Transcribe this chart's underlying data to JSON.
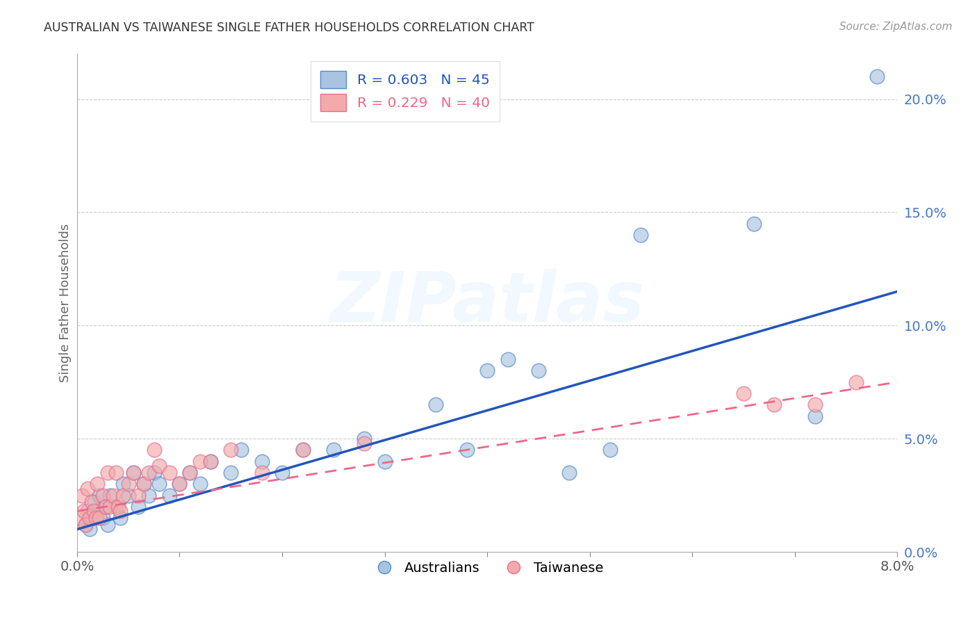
{
  "title": "AUSTRALIAN VS TAIWANESE SINGLE FATHER HOUSEHOLDS CORRELATION CHART",
  "source": "Source: ZipAtlas.com",
  "ylabel": "Single Father Households",
  "xlim": [
    0.0,
    8.0
  ],
  "ylim": [
    0.0,
    22.0
  ],
  "yticks_right": [
    0.0,
    5.0,
    10.0,
    15.0,
    20.0
  ],
  "xticks_minor": [
    0.0,
    1.0,
    2.0,
    3.0,
    4.0,
    5.0,
    6.0,
    7.0,
    8.0
  ],
  "xtick_labels_show": [
    0.0,
    8.0
  ],
  "legend_blue_r": "R = 0.603",
  "legend_blue_n": "N = 45",
  "legend_pink_r": "R = 0.229",
  "legend_pink_n": "N = 40",
  "legend_label_blue": "Australians",
  "legend_label_pink": "Taiwanese",
  "watermark": "ZIPatlas",
  "blue_scatter_color": "#A8C4E0",
  "pink_scatter_color": "#F4AAAA",
  "blue_scatter_edge": "#5588CC",
  "pink_scatter_edge": "#E07090",
  "blue_line_color": "#2255BB",
  "pink_line_color": "#EE6688",
  "background_color": "#FFFFFF",
  "grid_color": "#CCCCCC",
  "title_color": "#333333",
  "source_color": "#999999",
  "right_axis_color": "#4477CC",
  "aus_x": [
    0.08,
    0.1,
    0.12,
    0.15,
    0.17,
    0.2,
    0.22,
    0.25,
    0.28,
    0.3,
    0.32,
    0.38,
    0.42,
    0.45,
    0.5,
    0.55,
    0.6,
    0.65,
    0.7,
    0.75,
    0.8,
    0.9,
    1.0,
    1.1,
    1.2,
    1.3,
    1.5,
    1.6,
    1.8,
    2.0,
    2.2,
    2.5,
    2.8,
    3.0,
    3.5,
    3.8,
    4.0,
    4.2,
    4.5,
    4.8,
    5.2,
    5.5,
    6.6,
    7.2,
    7.8
  ],
  "aus_y": [
    1.2,
    1.8,
    1.0,
    1.5,
    2.2,
    1.8,
    2.5,
    1.5,
    2.0,
    1.2,
    2.5,
    2.0,
    1.5,
    3.0,
    2.5,
    3.5,
    2.0,
    3.0,
    2.5,
    3.5,
    3.0,
    2.5,
    3.0,
    3.5,
    3.0,
    4.0,
    3.5,
    4.5,
    4.0,
    3.5,
    4.5,
    4.5,
    5.0,
    4.0,
    6.5,
    4.5,
    8.0,
    8.5,
    8.0,
    3.5,
    4.5,
    14.0,
    14.5,
    6.0,
    21.0
  ],
  "tai_x": [
    0.03,
    0.05,
    0.07,
    0.08,
    0.1,
    0.12,
    0.14,
    0.16,
    0.18,
    0.2,
    0.22,
    0.25,
    0.28,
    0.3,
    0.32,
    0.35,
    0.38,
    0.4,
    0.42,
    0.45,
    0.5,
    0.55,
    0.6,
    0.65,
    0.7,
    0.75,
    0.8,
    0.9,
    1.0,
    1.1,
    1.2,
    1.3,
    1.5,
    1.8,
    2.2,
    2.8,
    6.5,
    6.8,
    7.2,
    7.6
  ],
  "tai_y": [
    1.5,
    2.5,
    1.8,
    1.2,
    2.8,
    1.5,
    2.2,
    1.8,
    1.5,
    3.0,
    1.5,
    2.5,
    2.0,
    3.5,
    2.0,
    2.5,
    3.5,
    2.0,
    1.8,
    2.5,
    3.0,
    3.5,
    2.5,
    3.0,
    3.5,
    4.5,
    3.8,
    3.5,
    3.0,
    3.5,
    4.0,
    4.0,
    4.5,
    3.5,
    4.5,
    4.8,
    7.0,
    6.5,
    6.5,
    7.5
  ],
  "blue_reg_x0": 0.0,
  "blue_reg_y0": 1.0,
  "blue_reg_x1": 8.0,
  "blue_reg_y1": 11.5,
  "pink_reg_x0": 0.0,
  "pink_reg_y0": 1.8,
  "pink_reg_x1": 8.0,
  "pink_reg_y1": 7.5
}
